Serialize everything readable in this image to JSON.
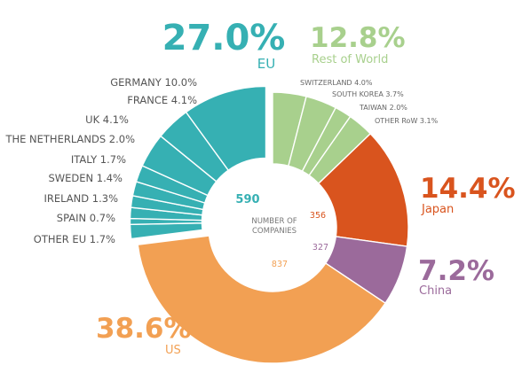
{
  "chart_data": {
    "type": "pie",
    "center_title": "NUMBER OF\nCOMPANIES",
    "colors": {
      "eu": "#36b0b3",
      "row": "#a8d08d",
      "japan": "#d9541e",
      "china": "#9b6a9b",
      "us": "#f2a053"
    },
    "groups": [
      {
        "key": "eu",
        "name": "EU",
        "percent": 27.0,
        "percent_label": "27.0%",
        "count": 590,
        "count_label": "590",
        "subsegments": [
          {
            "label": "GERMANY 10.0%",
            "percent": 10.0
          },
          {
            "label": "FRANCE 4.1%",
            "percent": 4.1
          },
          {
            "label": "UK 4.1%",
            "percent": 4.1
          },
          {
            "label": "THE NETHERLANDS 2.0%",
            "percent": 2.0
          },
          {
            "label": "ITALY 1.7%",
            "percent": 1.7
          },
          {
            "label": "SWEDEN 1.4%",
            "percent": 1.4
          },
          {
            "label": "IRELAND 1.3%",
            "percent": 1.3
          },
          {
            "label": "SPAIN 0.7%",
            "percent": 0.7
          },
          {
            "label": "OTHER EU 1.7%",
            "percent": 1.7
          }
        ]
      },
      {
        "key": "row",
        "name": "Rest of World",
        "percent": 12.8,
        "percent_label": "12.8%",
        "subsegments": [
          {
            "label": "SWITZERLAND 4.0%",
            "percent": 4.0
          },
          {
            "label": "SOUTH KOREA 3.7%",
            "percent": 3.7
          },
          {
            "label": "TAIWAN 2.0%",
            "percent": 2.0
          },
          {
            "label": "OTHER RoW 3.1%",
            "percent": 3.1
          }
        ]
      },
      {
        "key": "japan",
        "name": "Japan",
        "percent": 14.4,
        "percent_label": "14.4%",
        "count": 356,
        "count_label": "356"
      },
      {
        "key": "china",
        "name": "China",
        "percent": 7.2,
        "percent_label": "7.2%",
        "count": 327,
        "count_label": "327"
      },
      {
        "key": "us",
        "name": "US",
        "percent": 38.6,
        "percent_label": "38.6%",
        "count": 837,
        "count_label": "837"
      }
    ]
  }
}
